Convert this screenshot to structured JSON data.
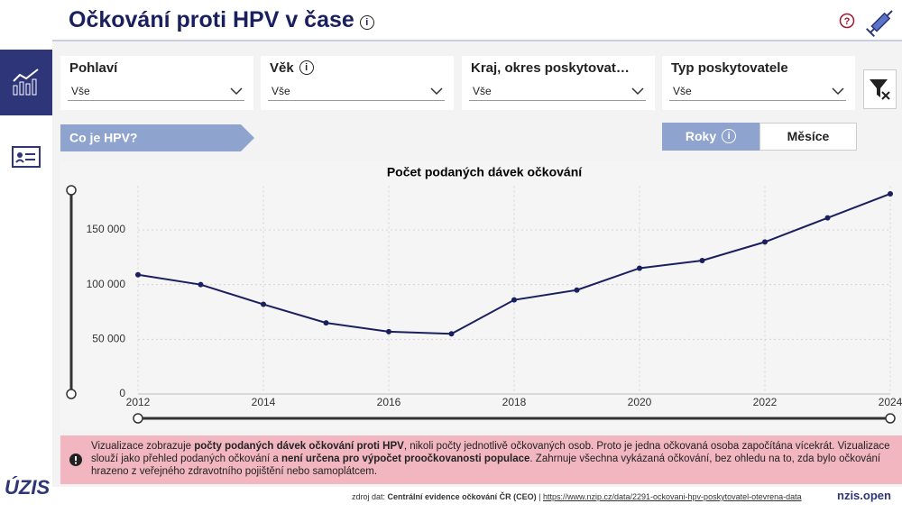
{
  "header": {
    "title": "Očkování proti HPV v čase"
  },
  "filters": [
    {
      "label": "Pohlaví",
      "value": "Vše"
    },
    {
      "label": "Věk",
      "value": "Vše"
    },
    {
      "label": "Kraj, okres poskytovat…",
      "value": "Vše"
    },
    {
      "label": "Typ poskytovatele",
      "value": "Vše"
    }
  ],
  "info_button": "Co je HPV?",
  "period_toggle": [
    "Roky",
    "Měsíce"
  ],
  "chart_data": {
    "type": "line",
    "title": "Počet podaných dávek očkování",
    "x": [
      2012,
      2013,
      2014,
      2015,
      2016,
      2017,
      2018,
      2019,
      2020,
      2021,
      2022,
      2023,
      2024
    ],
    "series": [
      {
        "name": "Počet podaných dávek očkování",
        "color": "#1a1f5e",
        "values": [
          109000,
          100000,
          82000,
          65000,
          57000,
          55000,
          86000,
          95000,
          115000,
          122000,
          139000,
          161000,
          183000
        ]
      }
    ],
    "xlim": [
      2012,
      2024
    ],
    "xticks": [
      2012,
      2014,
      2016,
      2018,
      2020,
      2022,
      2024
    ],
    "ylim": [
      0,
      190000
    ],
    "yticks": [
      0,
      {
        "value": 50000,
        "label": "50 000"
      },
      {
        "value": 100000,
        "label": "100 000"
      },
      {
        "value": 150000,
        "label": "150 000"
      }
    ],
    "grid": true
  },
  "notice": [
    {
      "text": "Vizualizace zobrazuje ",
      "bold": false
    },
    {
      "text": "počty podaných dávek očkování proti HPV",
      "bold": true
    },
    {
      "text": ", nikoli počty jednotlivě očkovaných osob. Proto je jedna očkovaná osoba započítána vícekrát. Vizualizace slouží jako přehled podaných očkování a ",
      "bold": false
    },
    {
      "text": "není určena pro výpočet proočkovanosti populace",
      "bold": true
    },
    {
      "text": ". Zahrnuje všechna vykázaná očkování, bez ohledu na to, zda bylo očkování hrazeno z veřejného zdravotního pojištění nebo samoplátcem.",
      "bold": false
    }
  ],
  "footer": {
    "source_label": "zdroj dat:",
    "source": "Centrální evidence očkování ČR (CEO)",
    "separator": "|",
    "link": "https://www.nzip.cz/data/2291-ockovani-hpv-poskytovatel-otevrena-data",
    "logo": "nzis.open"
  },
  "sidebar_logo": "ÚZIS"
}
